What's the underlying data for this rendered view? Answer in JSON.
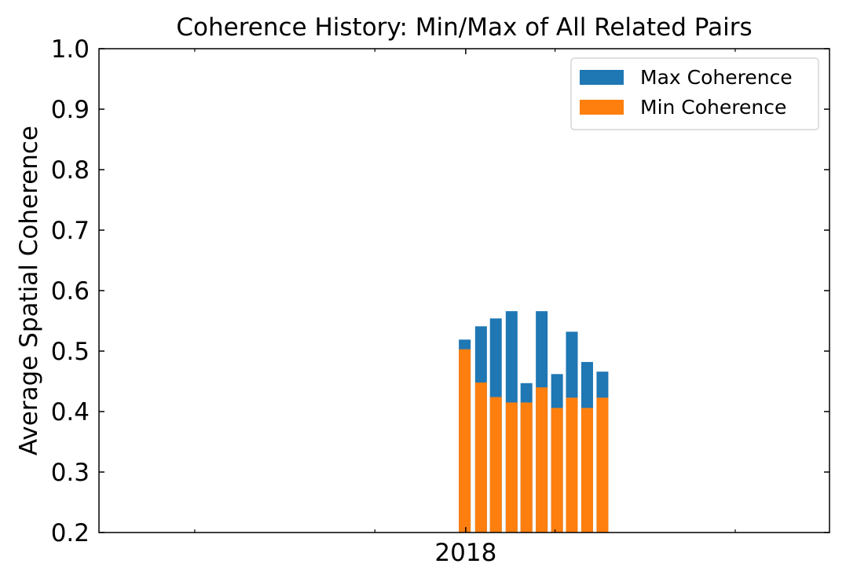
{
  "chart_data": {
    "type": "bar",
    "title": "Coherence History: Min/Max of All Related Pairs",
    "xlabel": "",
    "ylabel": "Average Spatial Coherence",
    "ylim": [
      0.2,
      1.0
    ],
    "yticks": [
      0.2,
      0.3,
      0.4,
      0.5,
      0.6,
      0.7,
      0.8,
      0.9,
      1.0
    ],
    "ytick_labels": [
      "0.2",
      "0.3",
      "0.4",
      "0.5",
      "0.6",
      "0.7",
      "0.8",
      "0.9",
      "1.0"
    ],
    "xlim": [
      "2015-12-20",
      "2020-01-08"
    ],
    "xtick_major_labels": [
      {
        "date": "2018-01-01",
        "label": "2018"
      }
    ],
    "xtick_minor": [
      "2016-07-01",
      "2017-07-01",
      "2018-07-01",
      "2019-07-01"
    ],
    "dates": [
      "2017-12-30",
      "2018-02-01",
      "2018-03-03",
      "2018-04-04",
      "2018-05-04",
      "2018-06-04",
      "2018-07-05",
      "2018-08-04",
      "2018-09-04",
      "2018-10-05"
    ],
    "series": [
      {
        "name": "Max Coherence",
        "color": "#1f77b4",
        "values": [
          0.519,
          0.541,
          0.554,
          0.566,
          0.447,
          0.566,
          0.462,
          0.532,
          0.482,
          0.466
        ]
      },
      {
        "name": "Min Coherence",
        "color": "#ff7f0e",
        "values": [
          0.503,
          0.448,
          0.424,
          0.415,
          0.415,
          0.44,
          0.406,
          0.423,
          0.406,
          0.423
        ]
      }
    ],
    "grid": false,
    "legend_position": "upper-right"
  }
}
